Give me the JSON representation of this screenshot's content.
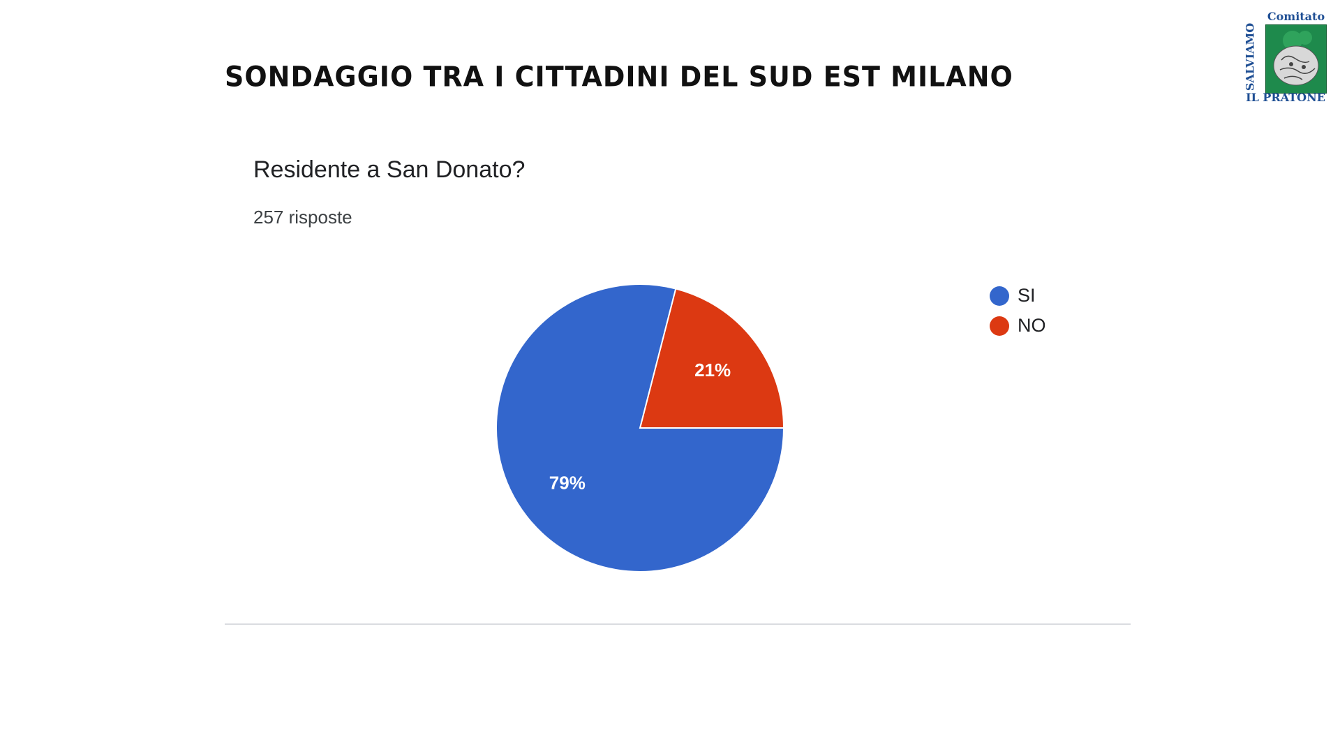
{
  "banner": {
    "title": "SONDAGGIO TRA I CITTADINI DEL SUD EST MILANO"
  },
  "logo": {
    "top_text": "Comitato",
    "side_text": "SALVIAMO",
    "bottom_text": "IL PRATONE"
  },
  "question": {
    "title": "Residente a San Donato?",
    "responses": "257 risposte"
  },
  "colors": {
    "si": "#3366cc",
    "no": "#dc3912",
    "logo_text": "#1f4f94",
    "logo_green": "#1e8a4c"
  },
  "chart_data": {
    "type": "pie",
    "title": "Residente a San Donato?",
    "subtitle": "257 risposte",
    "categories": [
      "SI",
      "NO"
    ],
    "values": [
      79,
      21
    ],
    "labels": [
      "79%",
      "21%"
    ],
    "colors": [
      "#3366cc",
      "#dc3912"
    ],
    "legend_position": "right"
  }
}
